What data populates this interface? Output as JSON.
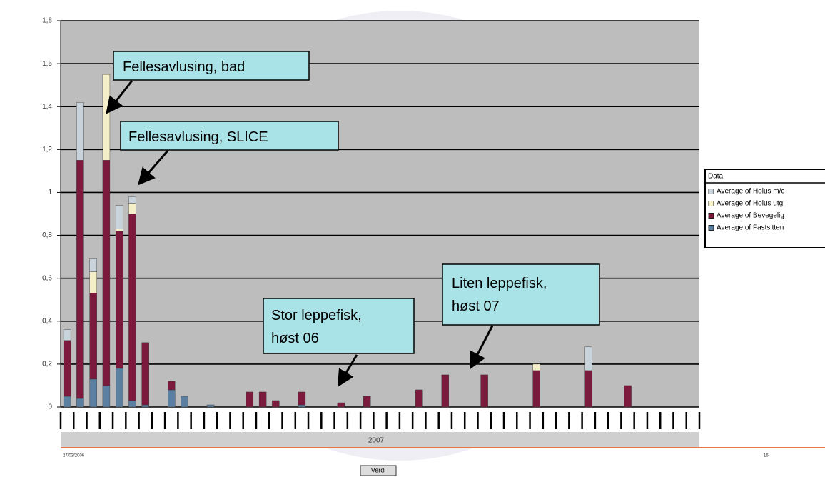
{
  "chart_data": {
    "type": "stacked_bar",
    "categories": [
      null,
      null,
      null,
      null,
      null,
      null,
      null,
      null,
      null,
      null,
      null,
      null,
      null,
      null,
      null,
      null,
      null,
      null,
      null,
      null,
      null,
      null,
      null,
      null,
      null,
      null,
      null,
      null,
      null,
      null,
      null,
      null,
      null,
      null,
      null,
      null,
      null,
      null,
      null,
      null,
      null,
      null,
      null,
      null,
      null,
      null,
      null,
      null,
      null
    ],
    "x_label": "2007",
    "x_start_label": "27/03/2006",
    "x_end_label": "16",
    "field_button": "Verdi",
    "legend_title": "Data",
    "legend": "right",
    "grid": true,
    "ylim": [
      0,
      1.8
    ],
    "yticks": [
      0,
      {
        "value": 0.2,
        "label": "0,2"
      },
      {
        "value": 0.4,
        "label": "0,4"
      },
      {
        "value": 0.6,
        "label": "0,6"
      },
      {
        "value": 0.8,
        "label": "0,8"
      },
      1,
      {
        "value": 1.2,
        "label": "1,2"
      },
      {
        "value": 1.4,
        "label": "1,4"
      },
      {
        "value": 1.6,
        "label": "1,6"
      },
      {
        "value": 1.8,
        "label": "1,8"
      }
    ],
    "series": [
      {
        "name": "Average of Holus m/c",
        "color": "#c9d3db",
        "values": [
          0.05,
          0.27,
          0.06,
          0,
          0.11,
          0.03,
          0,
          0,
          0,
          0,
          0,
          0,
          0,
          0,
          0,
          0,
          0,
          0,
          0,
          0,
          0,
          0,
          0,
          0,
          0,
          0,
          0,
          0,
          0,
          0,
          0,
          0,
          0,
          0,
          0,
          0,
          0,
          0,
          0,
          0,
          0.11,
          0,
          0,
          0,
          0,
          0,
          0,
          0,
          0
        ]
      },
      {
        "name": "Average of Holus utg",
        "color": "#f4efc8",
        "values": [
          0,
          0,
          0.1,
          0.4,
          0.01,
          0.05,
          0,
          0,
          0,
          0,
          0,
          0,
          0,
          0,
          0,
          0,
          0,
          0,
          0,
          0,
          0,
          0,
          0,
          0,
          0,
          0,
          0,
          0,
          0,
          0,
          0,
          0,
          0,
          0,
          0,
          0,
          0.03,
          0,
          0,
          0,
          0,
          0,
          0,
          0,
          0,
          0,
          0,
          0,
          0
        ]
      },
      {
        "name": "Average of Bevegelig",
        "color": "#7b1a3c",
        "values": [
          0.26,
          1.11,
          0.4,
          1.05,
          0.64,
          0.87,
          0.29,
          0,
          0.04,
          0,
          0,
          0,
          0,
          0,
          0.07,
          0.07,
          0.03,
          0,
          0.06,
          0,
          0,
          0.02,
          0,
          0.05,
          0,
          0,
          0,
          0.08,
          0,
          0.15,
          0,
          0,
          0.15,
          0,
          0,
          0,
          0.17,
          0,
          0,
          0,
          0.17,
          0,
          0,
          0.1,
          0,
          0,
          0,
          0,
          0
        ]
      },
      {
        "name": "Average of Fastsitten",
        "color": "#5b7fa0",
        "values": [
          0.05,
          0.04,
          0.13,
          0.1,
          0.18,
          0.03,
          0.01,
          0,
          0.08,
          0.05,
          0,
          0.01,
          0,
          0,
          0,
          0,
          0,
          0,
          0.01,
          0,
          0,
          0,
          0,
          0,
          0,
          0,
          0,
          0,
          0,
          0,
          0,
          0,
          0,
          0,
          0,
          0,
          0,
          0,
          0,
          0,
          0,
          0,
          0,
          0,
          0,
          0,
          0,
          0,
          0
        ]
      }
    ],
    "annotations": [
      {
        "lines": [
          "Fellesavlusing, bad"
        ]
      },
      {
        "lines": [
          "Fellesavlusing, SLICE"
        ]
      },
      {
        "lines": [
          "Stor leppefisk,",
          "høst 06"
        ]
      },
      {
        "lines": [
          "Liten leppefisk,",
          "høst 07"
        ]
      }
    ]
  }
}
